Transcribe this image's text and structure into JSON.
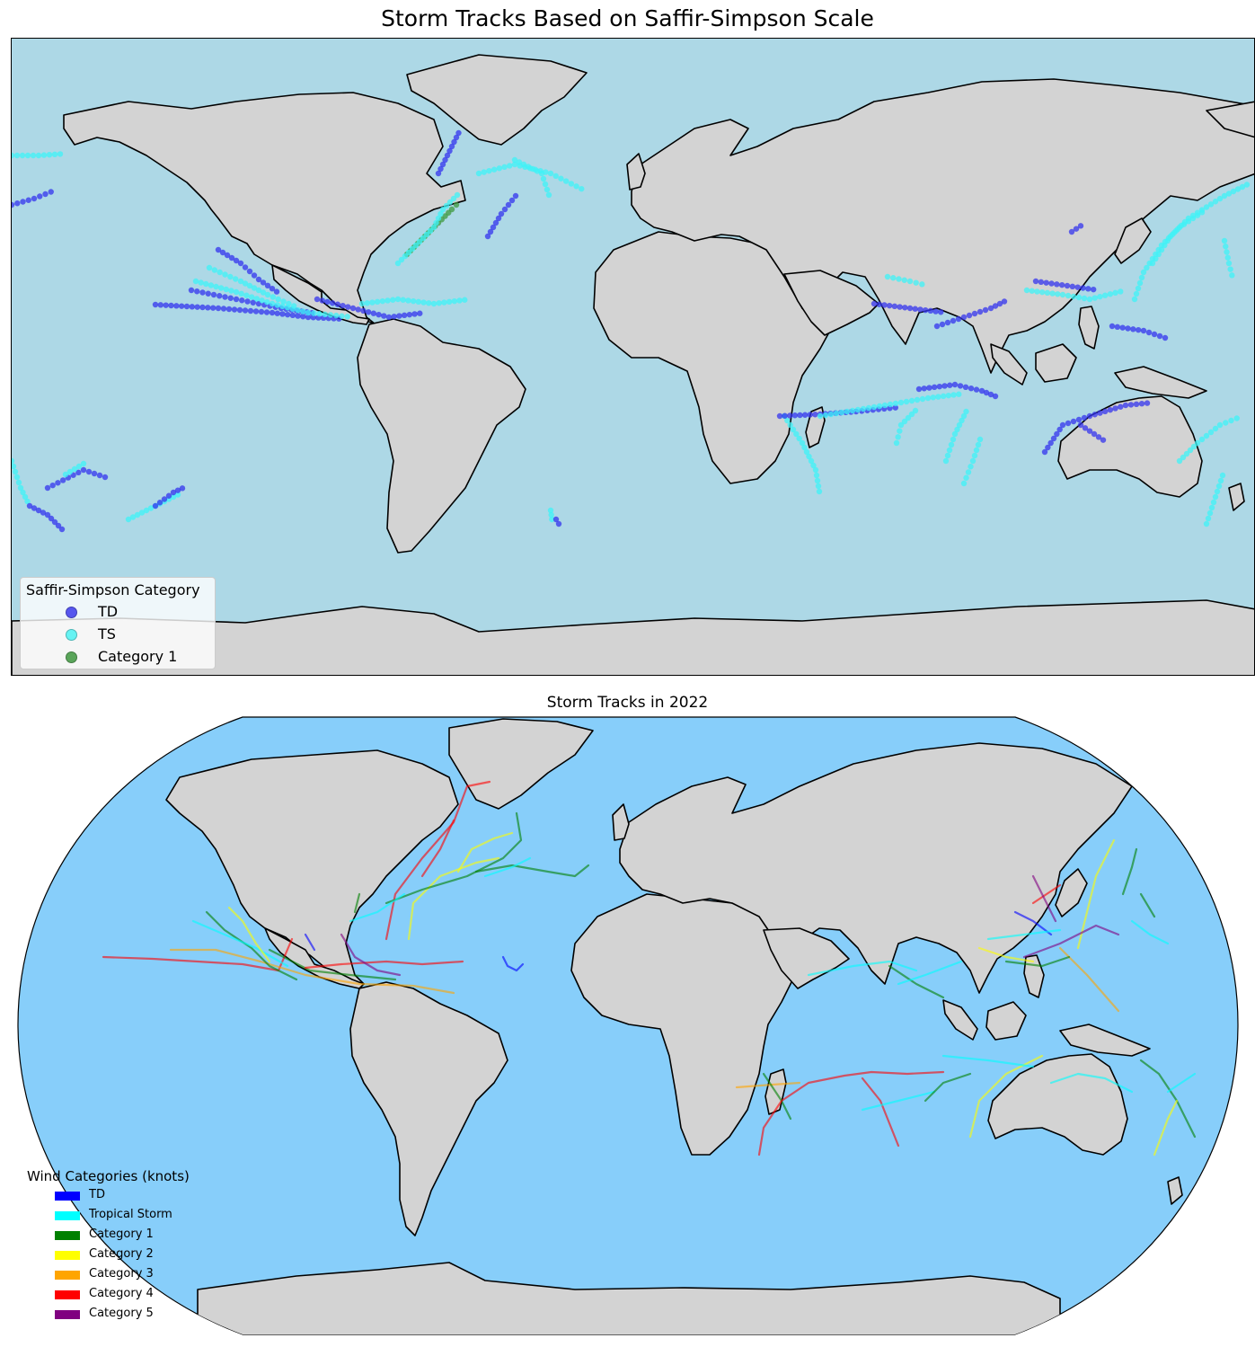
{
  "map1": {
    "title": "Storm Tracks Based on Saffir-Simpson Scale",
    "legend_title": "Saffir-Simpson Category",
    "legend": [
      {
        "label": "TD",
        "color": "#3434ee"
      },
      {
        "label": "TS",
        "color": "#3ff3f7"
      },
      {
        "label": "Category 1",
        "color": "#3f9a3f"
      }
    ],
    "ocean_color": "#add8e6",
    "land_color": "#d3d3d3"
  },
  "map2": {
    "title": "Storm Tracks in 2022",
    "legend_title": "Wind Categories (knots)",
    "legend": [
      {
        "label": "TD",
        "color": "#0000ff"
      },
      {
        "label": "Tropical Storm",
        "color": "#00ffff"
      },
      {
        "label": "Category 1",
        "color": "#008000"
      },
      {
        "label": "Category 2",
        "color": "#ffff00"
      },
      {
        "label": "Category 3",
        "color": "#ffa500"
      },
      {
        "label": "Category 4",
        "color": "#ff0000"
      },
      {
        "label": "Category 5",
        "color": "#800080"
      }
    ],
    "ocean_color": "#87cefa",
    "land_color": "#d3d3d3"
  }
}
